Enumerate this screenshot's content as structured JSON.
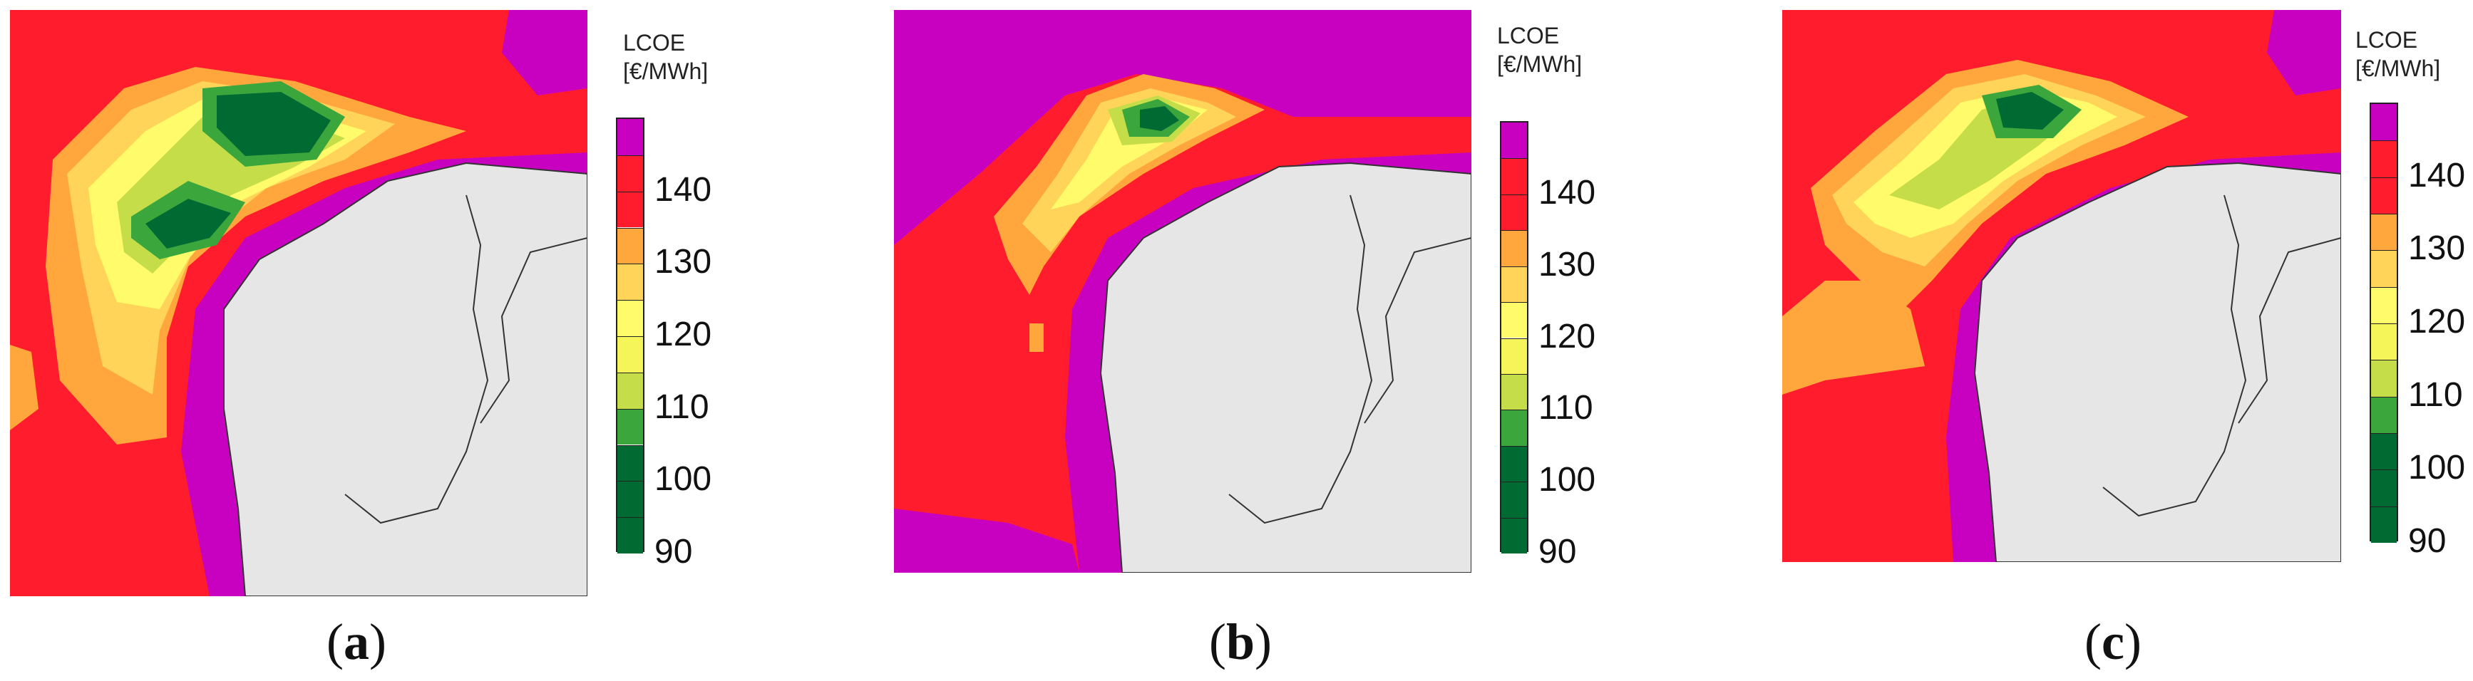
{
  "legend": {
    "title_line1": "LCOE",
    "title_line2": "[€/MWh]",
    "bins": [
      {
        "from": 90,
        "to": 95,
        "color": "#006a33"
      },
      {
        "from": 95,
        "to": 100,
        "color": "#006a33"
      },
      {
        "from": 100,
        "to": 105,
        "color": "#006a33"
      },
      {
        "from": 105,
        "to": 110,
        "color": "#3aa63c"
      },
      {
        "from": 110,
        "to": 115,
        "color": "#c6dd4a"
      },
      {
        "from": 115,
        "to": 120,
        "color": "#f5f55a"
      },
      {
        "from": 120,
        "to": 125,
        "color": "#fffb6a"
      },
      {
        "from": 125,
        "to": 130,
        "color": "#ffd458"
      },
      {
        "from": 130,
        "to": 135,
        "color": "#ffa73c"
      },
      {
        "from": 135,
        "to": 140,
        "color": "#ff1c2c"
      },
      {
        "from": 140,
        "to": 145,
        "color": "#ff1c2c"
      },
      {
        "from": 145,
        "to": 150,
        "color": "#c800c0"
      }
    ],
    "tick_labels": [
      "90",
      "100",
      "110",
      "120",
      "130",
      "140"
    ]
  },
  "panels": [
    {
      "id": "a",
      "caption_open": "(",
      "caption_letter": "a",
      "caption_close": ")"
    },
    {
      "id": "b",
      "caption_open": "(",
      "caption_letter": "b",
      "caption_close": ")"
    },
    {
      "id": "c",
      "caption_open": "(",
      "caption_letter": "c",
      "caption_close": ")"
    }
  ],
  "colors": {
    "land": "#e6e6e6",
    "border": "#333333",
    "magenta": "#c800c0",
    "red": "#ff1c2c",
    "orange": "#ffa73c",
    "light_orange": "#ffd458",
    "yellow": "#fffb6a",
    "lime": "#c6dd4a",
    "green": "#3aa63c",
    "dark_green": "#006a33"
  }
}
